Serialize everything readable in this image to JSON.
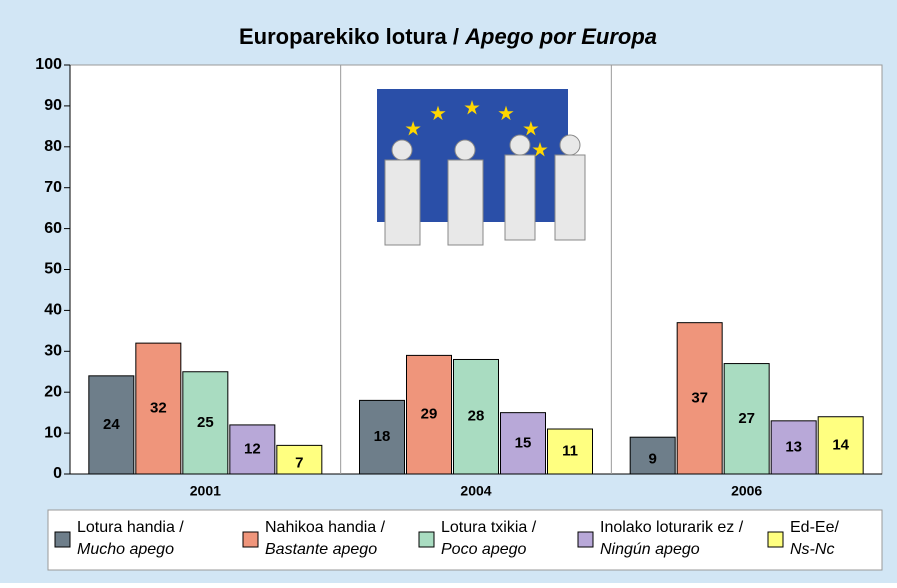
{
  "chart_data": {
    "type": "bar",
    "title": "Europarekiko lotura /",
    "title_italic": "Apego por Europa",
    "categories": [
      "2001",
      "2004",
      "2006"
    ],
    "series": [
      {
        "name": "Lotura handia /",
        "name_italic": "Mucho apego",
        "color": "#6e7e8a",
        "values": [
          24,
          18,
          9
        ]
      },
      {
        "name": "Nahikoa handia /",
        "name_italic": "Bastante apego",
        "color": "#ef957b",
        "values": [
          32,
          29,
          37
        ]
      },
      {
        "name": "Lotura txikia /",
        "name_italic": "Poco apego",
        "color": "#a9dcc1",
        "values": [
          25,
          28,
          27
        ]
      },
      {
        "name": "Inolako loturarik ez /",
        "name_italic": "Ningún apego",
        "color": "#b8a8d8",
        "values": [
          12,
          15,
          13
        ]
      },
      {
        "name": "Ed-Ee/",
        "name_italic": "Ns-Nc",
        "color": "#ffff80",
        "values": [
          7,
          11,
          14
        ]
      }
    ],
    "ylim": [
      0,
      100
    ],
    "yticks": [
      0,
      10,
      20,
      30,
      40,
      50,
      60,
      70,
      80,
      90,
      100
    ]
  }
}
